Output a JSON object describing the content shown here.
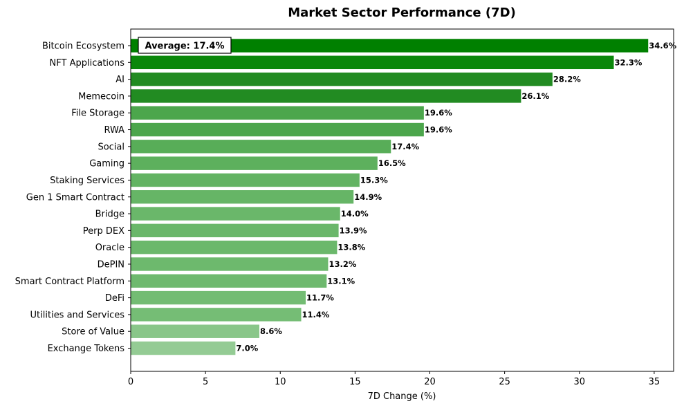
{
  "chart_data": {
    "type": "bar",
    "orientation": "horizontal",
    "title": "Market Sector Performance (7D)",
    "xlabel": "7D Change (%)",
    "ylabel": "",
    "xlim": [
      0,
      36.3
    ],
    "xticks": [
      0,
      5,
      10,
      15,
      20,
      25,
      30,
      35
    ],
    "grid": false,
    "annotation": "Average: 17.4%",
    "categories": [
      "Bitcoin Ecosystem",
      "NFT Applications",
      "AI",
      "Memecoin",
      "File Storage",
      "RWA",
      "Social",
      "Gaming",
      "Staking Services",
      "Gen 1 Smart Contract",
      "Bridge",
      "Perp DEX",
      "Oracle",
      "DePIN",
      "Smart Contract Platform",
      "DeFi",
      "Utilities and Services",
      "Store of Value",
      "Exchange Tokens"
    ],
    "values": [
      34.6,
      32.3,
      28.2,
      26.1,
      19.6,
      19.6,
      17.4,
      16.5,
      15.3,
      14.9,
      14.0,
      13.9,
      13.8,
      13.2,
      13.1,
      11.7,
      11.4,
      8.6,
      7.0
    ],
    "value_labels": [
      "34.6%",
      "32.3%",
      "28.2%",
      "26.1%",
      "19.6%",
      "19.6%",
      "17.4%",
      "16.5%",
      "15.3%",
      "14.9%",
      "14.0%",
      "13.9%",
      "13.8%",
      "13.2%",
      "13.1%",
      "11.7%",
      "11.4%",
      "8.6%",
      "7.0%"
    ],
    "colors": [
      "#008000",
      "#0a870a",
      "#228b22",
      "#228b22",
      "#4ca64c",
      "#4ca64c",
      "#58ad58",
      "#5db05d",
      "#63b363",
      "#66b566",
      "#6ab76a",
      "#6ab76a",
      "#6bb86b",
      "#6db96d",
      "#6eb96e",
      "#73bc73",
      "#75bd75",
      "#89c689",
      "#94cb94"
    ]
  }
}
